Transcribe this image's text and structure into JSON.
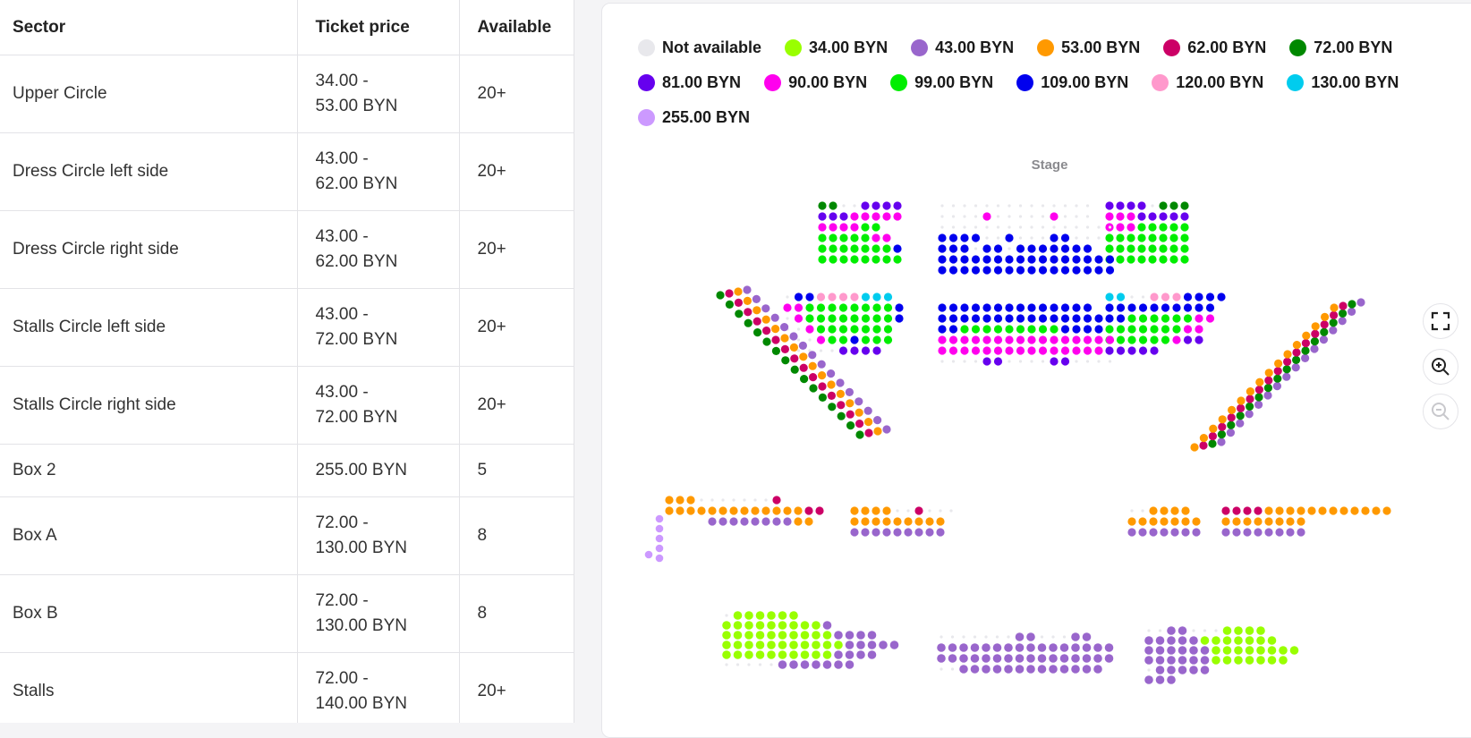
{
  "table": {
    "headers": {
      "sector": "Sector",
      "price": "Ticket price",
      "available": "Available"
    },
    "rows": [
      {
        "sector": "Upper Circle",
        "price_line1": "34.00 -",
        "price_line2": "53.00 BYN",
        "available": "20+"
      },
      {
        "sector": "Dress Circle left side",
        "price_line1": "43.00 -",
        "price_line2": "62.00 BYN",
        "available": "20+"
      },
      {
        "sector": "Dress Circle right side",
        "price_line1": "43.00 -",
        "price_line2": "62.00 BYN",
        "available": "20+"
      },
      {
        "sector": "Stalls Circle left side",
        "price_line1": "43.00 -",
        "price_line2": "72.00 BYN",
        "available": "20+"
      },
      {
        "sector": "Stalls Circle right side",
        "price_line1": "43.00 -",
        "price_line2": "72.00 BYN",
        "available": "20+"
      },
      {
        "sector": "Box 2",
        "price_line1": "255.00 BYN",
        "price_line2": "",
        "available": "5"
      },
      {
        "sector": "Box A",
        "price_line1": "72.00 -",
        "price_line2": "130.00 BYN",
        "available": "8"
      },
      {
        "sector": "Box B",
        "price_line1": "72.00 -",
        "price_line2": "130.00 BYN",
        "available": "8"
      },
      {
        "sector": "Stalls",
        "price_line1": "72.00 -",
        "price_line2": "140.00 BYN",
        "available": "20+"
      }
    ]
  },
  "legend": [
    {
      "label": "Not available",
      "color": "#e8e8ec"
    },
    {
      "label": "34.00 BYN",
      "color": "#99ff00"
    },
    {
      "label": "43.00 BYN",
      "color": "#9966cc"
    },
    {
      "label": "53.00 BYN",
      "color": "#ff9900"
    },
    {
      "label": "62.00 BYN",
      "color": "#cc0066"
    },
    {
      "label": "72.00 BYN",
      "color": "#008800"
    },
    {
      "label": "81.00 BYN",
      "color": "#6600ee"
    },
    {
      "label": "90.00 BYN",
      "color": "#ff00ee"
    },
    {
      "label": "99.00 BYN",
      "color": "#00ee00"
    },
    {
      "label": "109.00 BYN",
      "color": "#0000ee"
    },
    {
      "label": "120.00 BYN",
      "color": "#ff99cc"
    },
    {
      "label": "130.00 BYN",
      "color": "#00ccee"
    },
    {
      "label": "255.00 BYN",
      "color": "#cc99ff"
    }
  ],
  "map": {
    "stage_label": "Stage"
  },
  "controls": {
    "fullscreen": "fullscreen-icon",
    "zoom_in": "zoom-in-icon",
    "zoom_out": "zoom-out-icon"
  }
}
